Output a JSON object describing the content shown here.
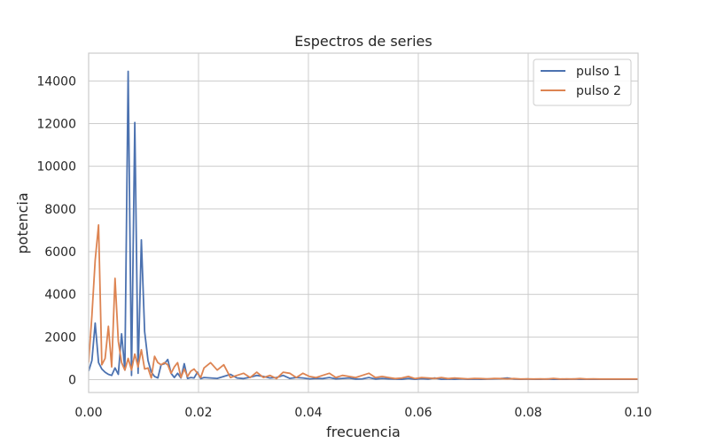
{
  "chart_data": {
    "type": "line",
    "title": "Espectros de series",
    "xlabel": "frecuencia",
    "ylabel": "potencia",
    "xlim": [
      0.0,
      0.1
    ],
    "ylim": [
      -600,
      15300
    ],
    "grid": true,
    "legend_position": "top-right",
    "x_ticks": [
      {
        "value": 0.0,
        "label": "0.00"
      },
      {
        "value": 0.02,
        "label": "0.02"
      },
      {
        "value": 0.04,
        "label": "0.04"
      },
      {
        "value": 0.06,
        "label": "0.06"
      },
      {
        "value": 0.08,
        "label": "0.08"
      },
      {
        "value": 0.1,
        "label": "0.10"
      }
    ],
    "y_ticks": [
      {
        "value": 0,
        "label": "0"
      },
      {
        "value": 2000,
        "label": "2000"
      },
      {
        "value": 4000,
        "label": "4000"
      },
      {
        "value": 6000,
        "label": "6000"
      },
      {
        "value": 8000,
        "label": "8000"
      },
      {
        "value": 10000,
        "label": "10000"
      },
      {
        "value": 12000,
        "label": "12000"
      },
      {
        "value": 14000,
        "label": "14000"
      }
    ],
    "series": [
      {
        "name": "pulso 1",
        "color": "#4c72b0",
        "x": [
          0.0,
          0.0006,
          0.0012,
          0.0018,
          0.0024,
          0.003,
          0.0036,
          0.0042,
          0.0048,
          0.0054,
          0.006,
          0.0066,
          0.0072,
          0.0078,
          0.0084,
          0.009,
          0.0096,
          0.0102,
          0.0108,
          0.0114,
          0.012,
          0.0126,
          0.0132,
          0.0138,
          0.0144,
          0.015,
          0.0156,
          0.0162,
          0.0168,
          0.0174,
          0.018,
          0.0186,
          0.0192,
          0.0198,
          0.0204,
          0.021,
          0.0222,
          0.0234,
          0.0246,
          0.0258,
          0.027,
          0.0282,
          0.0294,
          0.0306,
          0.0318,
          0.033,
          0.0342,
          0.0354,
          0.0366,
          0.0378,
          0.039,
          0.0402,
          0.0414,
          0.0426,
          0.0438,
          0.045,
          0.0462,
          0.0474,
          0.0486,
          0.0498,
          0.051,
          0.0522,
          0.0534,
          0.0546,
          0.0558,
          0.057,
          0.0582,
          0.0594,
          0.0606,
          0.0618,
          0.063,
          0.0642,
          0.0654,
          0.0666,
          0.0678,
          0.069,
          0.0702,
          0.0714,
          0.0726,
          0.0738,
          0.075,
          0.0762,
          0.0774,
          0.0786,
          0.0798,
          0.081,
          0.0822,
          0.0834,
          0.0846,
          0.0858,
          0.087,
          0.0882,
          0.0894,
          0.0906,
          0.0918,
          0.093,
          0.0942,
          0.0954,
          0.0966,
          0.0978,
          0.099,
          0.1
        ],
        "y": [
          400,
          900,
          2650,
          800,
          500,
          350,
          250,
          200,
          550,
          250,
          2150,
          450,
          14450,
          200,
          12050,
          300,
          6550,
          2250,
          900,
          350,
          150,
          80,
          700,
          750,
          950,
          300,
          100,
          300,
          80,
          750,
          60,
          100,
          80,
          350,
          50,
          100,
          80,
          60,
          150,
          250,
          80,
          50,
          120,
          200,
          150,
          80,
          100,
          200,
          60,
          100,
          80,
          40,
          60,
          50,
          100,
          40,
          60,
          80,
          30,
          40,
          100,
          30,
          60,
          40,
          30,
          20,
          60,
          20,
          50,
          30,
          80,
          20,
          30,
          20,
          40,
          20,
          30,
          20,
          30,
          40,
          50,
          80,
          30,
          20,
          30,
          20,
          20,
          30,
          20,
          20,
          20,
          30,
          20,
          20,
          20,
          20,
          20,
          20,
          20,
          20,
          20,
          20
        ]
      },
      {
        "name": "pulso 2",
        "color": "#dd8452",
        "x": [
          0.0,
          0.0006,
          0.0012,
          0.0018,
          0.0024,
          0.003,
          0.0036,
          0.0042,
          0.0048,
          0.0054,
          0.006,
          0.0066,
          0.0072,
          0.0078,
          0.0084,
          0.009,
          0.0096,
          0.0102,
          0.0108,
          0.0114,
          0.012,
          0.0126,
          0.0132,
          0.0138,
          0.0144,
          0.015,
          0.0156,
          0.0162,
          0.0168,
          0.0174,
          0.018,
          0.0186,
          0.0192,
          0.0198,
          0.0204,
          0.021,
          0.0222,
          0.0234,
          0.0246,
          0.0258,
          0.027,
          0.0282,
          0.0294,
          0.0306,
          0.0318,
          0.033,
          0.0342,
          0.0354,
          0.0366,
          0.0378,
          0.039,
          0.0402,
          0.0414,
          0.0426,
          0.0438,
          0.045,
          0.0462,
          0.0474,
          0.0486,
          0.0498,
          0.051,
          0.0522,
          0.0534,
          0.0546,
          0.0558,
          0.057,
          0.0582,
          0.0594,
          0.0606,
          0.0618,
          0.063,
          0.0642,
          0.0654,
          0.0666,
          0.0678,
          0.069,
          0.0702,
          0.0714,
          0.0726,
          0.0738,
          0.075,
          0.0762,
          0.0774,
          0.0786,
          0.0798,
          0.081,
          0.0822,
          0.0834,
          0.0846,
          0.0858,
          0.087,
          0.0882,
          0.0894,
          0.0906,
          0.0918,
          0.093,
          0.0942,
          0.0954,
          0.0966,
          0.0978,
          0.099,
          0.1
        ],
        "y": [
          800,
          3000,
          5600,
          7250,
          700,
          1000,
          2500,
          600,
          4750,
          1800,
          800,
          450,
          1000,
          450,
          1200,
          600,
          1400,
          500,
          550,
          80,
          1100,
          800,
          700,
          800,
          700,
          300,
          600,
          800,
          100,
          500,
          150,
          400,
          500,
          300,
          100,
          550,
          800,
          450,
          700,
          100,
          200,
          300,
          100,
          350,
          100,
          200,
          50,
          350,
          300,
          100,
          300,
          150,
          100,
          200,
          300,
          100,
          200,
          150,
          100,
          200,
          300,
          100,
          150,
          100,
          50,
          80,
          150,
          50,
          100,
          80,
          60,
          100,
          50,
          80,
          60,
          40,
          60,
          50,
          40,
          60,
          50,
          40,
          50,
          30,
          40,
          30,
          40,
          30,
          60,
          30,
          40,
          30,
          50,
          30,
          40,
          30,
          30,
          30,
          30,
          30,
          30,
          30
        ]
      }
    ]
  }
}
